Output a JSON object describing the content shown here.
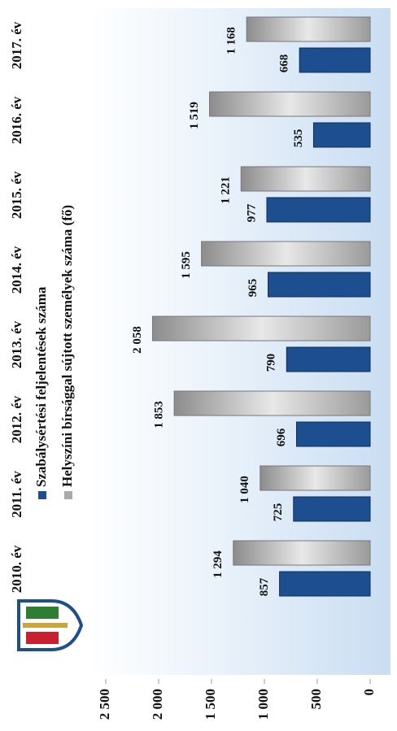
{
  "chart_data": {
    "type": "bar",
    "categories": [
      "2010. év",
      "2011. év",
      "2012. év",
      "2013. év",
      "2014. év",
      "2015. év",
      "2016. év",
      "2017. év"
    ],
    "series": [
      {
        "name": "Szabálysértési feljelentések száma",
        "color": "#1d4e8f",
        "values": [
          857,
          725,
          696,
          790,
          965,
          977,
          535,
          668
        ]
      },
      {
        "name": "Helyszíni bírsággal sújtott személyek száma (fő)",
        "color": "#bdbdbd",
        "values": [
          1294,
          1040,
          1853,
          2058,
          1595,
          1221,
          1519,
          1168
        ],
        "value_labels": [
          "1 294",
          "1 040",
          "1 853",
          "2 058",
          "1 595",
          "1 221",
          "1 519",
          "1 168"
        ]
      }
    ],
    "ylim": [
      0,
      2500
    ],
    "yticks": [
      0,
      500,
      {
        "value": 1000,
        "label": "1 000"
      },
      {
        "value": 1500,
        "label": "1 500"
      },
      {
        "value": 2000,
        "label": "2 000"
      },
      {
        "value": 2500,
        "label": "2 500"
      }
    ],
    "legend": "top-left"
  }
}
